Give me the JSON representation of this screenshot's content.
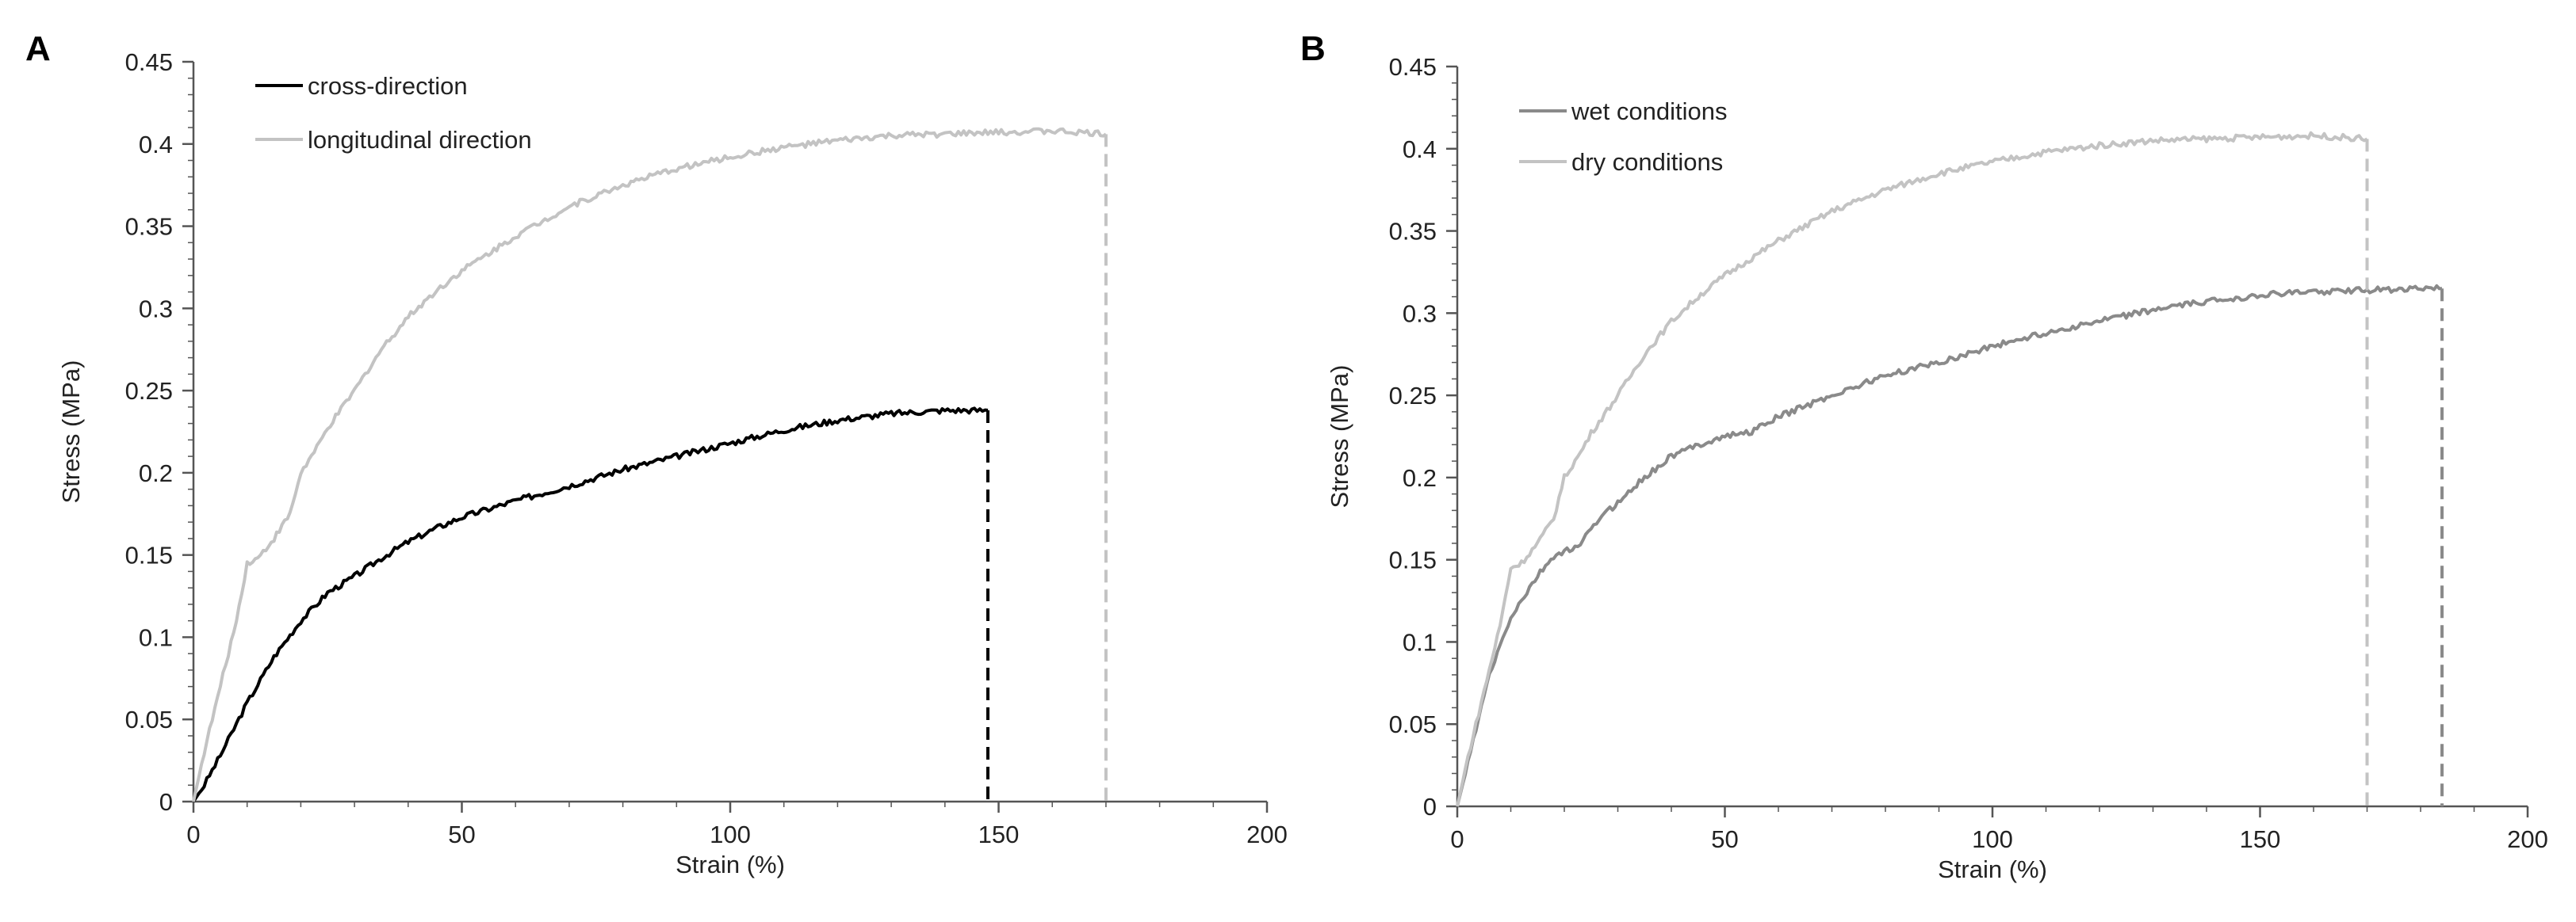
{
  "chart_data": [
    {
      "type": "line",
      "panel_label": "A",
      "xlabel": "Strain (%)",
      "ylabel": "Stress (MPa)",
      "xlim": [
        0,
        200
      ],
      "ylim": [
        0,
        0.45
      ],
      "x_ticks": [
        "0",
        "50",
        "100",
        "150",
        "200"
      ],
      "y_ticks": [
        "0",
        "0.05",
        "0.1",
        "0.15",
        "0.2",
        "0.25",
        "0.3",
        "0.35",
        "0.4",
        "0.45"
      ],
      "grid": false,
      "legend_position": "top-left",
      "series": [
        {
          "name": "cross-direction",
          "color": "#000000",
          "points": [
            [
              0,
              0
            ],
            [
              2,
              0.01
            ],
            [
              5,
              0.028
            ],
            [
              10,
              0.06
            ],
            [
              15,
              0.088
            ],
            [
              20,
              0.11
            ],
            [
              25,
              0.127
            ],
            [
              30,
              0.137
            ],
            [
              35,
              0.148
            ],
            [
              40,
              0.158
            ],
            [
              45,
              0.166
            ],
            [
              50,
              0.173
            ],
            [
              60,
              0.183
            ],
            [
              70,
              0.192
            ],
            [
              80,
              0.202
            ],
            [
              90,
              0.21
            ],
            [
              100,
              0.218
            ],
            [
              110,
              0.226
            ],
            [
              120,
              0.232
            ],
            [
              130,
              0.236
            ],
            [
              140,
              0.238
            ],
            [
              148,
              0.238
            ]
          ],
          "break_strain": 148
        },
        {
          "name": "longitudinal direction",
          "color": "#c3c3c3",
          "points": [
            [
              0,
              0
            ],
            [
              2,
              0.03
            ],
            [
              5,
              0.07
            ],
            [
              8,
              0.11
            ],
            [
              10,
              0.145
            ],
            [
              12,
              0.148
            ],
            [
              15,
              0.16
            ],
            [
              18,
              0.175
            ],
            [
              20,
              0.2
            ],
            [
              23,
              0.215
            ],
            [
              25,
              0.227
            ],
            [
              30,
              0.25
            ],
            [
              35,
              0.275
            ],
            [
              40,
              0.295
            ],
            [
              45,
              0.31
            ],
            [
              50,
              0.323
            ],
            [
              60,
              0.344
            ],
            [
              70,
              0.362
            ],
            [
              80,
              0.375
            ],
            [
              90,
              0.385
            ],
            [
              100,
              0.392
            ],
            [
              110,
              0.398
            ],
            [
              120,
              0.402
            ],
            [
              130,
              0.405
            ],
            [
              140,
              0.406
            ],
            [
              150,
              0.407
            ],
            [
              160,
              0.408
            ],
            [
              170,
              0.406
            ]
          ],
          "break_strain": 170
        }
      ]
    },
    {
      "type": "line",
      "panel_label": "B",
      "xlabel": "Strain (%)",
      "ylabel": "Stress (MPa)",
      "xlim": [
        0,
        200
      ],
      "ylim": [
        0,
        0.45
      ],
      "x_ticks": [
        "0",
        "50",
        "100",
        "150",
        "200"
      ],
      "y_ticks": [
        "0",
        "0.05",
        "0.1",
        "0.15",
        "0.2",
        "0.25",
        "0.3",
        "0.35",
        "0.4",
        "0.45"
      ],
      "grid": false,
      "legend_position": "top-left",
      "series": [
        {
          "name": "wet conditions",
          "color": "#8a8a8a",
          "points": [
            [
              0,
              0
            ],
            [
              3,
              0.04
            ],
            [
              6,
              0.08
            ],
            [
              10,
              0.115
            ],
            [
              15,
              0.14
            ],
            [
              18,
              0.152
            ],
            [
              20,
              0.155
            ],
            [
              23,
              0.158
            ],
            [
              25,
              0.17
            ],
            [
              30,
              0.185
            ],
            [
              35,
              0.2
            ],
            [
              40,
              0.213
            ],
            [
              45,
              0.22
            ],
            [
              50,
              0.225
            ],
            [
              55,
              0.228
            ],
            [
              60,
              0.237
            ],
            [
              70,
              0.25
            ],
            [
              80,
              0.262
            ],
            [
              90,
              0.27
            ],
            [
              100,
              0.28
            ],
            [
              110,
              0.288
            ],
            [
              120,
              0.295
            ],
            [
              130,
              0.302
            ],
            [
              140,
              0.307
            ],
            [
              150,
              0.311
            ],
            [
              160,
              0.313
            ],
            [
              170,
              0.314
            ],
            [
              180,
              0.315
            ],
            [
              184,
              0.315
            ]
          ],
          "break_strain": 184
        },
        {
          "name": "dry conditions",
          "color": "#c3c3c3",
          "points": [
            [
              0,
              0
            ],
            [
              2,
              0.03
            ],
            [
              5,
              0.07
            ],
            [
              8,
              0.11
            ],
            [
              10,
              0.145
            ],
            [
              12,
              0.148
            ],
            [
              15,
              0.16
            ],
            [
              18,
              0.175
            ],
            [
              20,
              0.2
            ],
            [
              23,
              0.215
            ],
            [
              25,
              0.227
            ],
            [
              30,
              0.25
            ],
            [
              35,
              0.275
            ],
            [
              40,
              0.295
            ],
            [
              45,
              0.31
            ],
            [
              50,
              0.323
            ],
            [
              60,
              0.344
            ],
            [
              70,
              0.362
            ],
            [
              80,
              0.375
            ],
            [
              90,
              0.385
            ],
            [
              100,
              0.392
            ],
            [
              110,
              0.398
            ],
            [
              120,
              0.402
            ],
            [
              130,
              0.405
            ],
            [
              140,
              0.406
            ],
            [
              150,
              0.407
            ],
            [
              160,
              0.408
            ],
            [
              170,
              0.406
            ]
          ],
          "break_strain": 170
        }
      ]
    }
  ]
}
